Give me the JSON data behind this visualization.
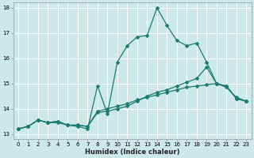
{
  "xlabel": "Humidex (Indice chaleur)",
  "bg_color": "#cce8e8",
  "grid_color": "#ffffff",
  "line_color": "#1a7a6e",
  "xlim": [
    -0.5,
    23.5
  ],
  "ylim": [
    12.8,
    18.2
  ],
  "xticks": [
    0,
    1,
    2,
    3,
    4,
    5,
    6,
    7,
    8,
    9,
    10,
    11,
    12,
    13,
    14,
    15,
    16,
    17,
    18,
    19,
    20,
    21,
    22,
    23
  ],
  "yticks": [
    13,
    14,
    15,
    16,
    17,
    18
  ],
  "line1_x": [
    0,
    1,
    2,
    3,
    4,
    5,
    6,
    7,
    8,
    9,
    10,
    11,
    12,
    13,
    14,
    15,
    16,
    17,
    18,
    19,
    20,
    21,
    22,
    23
  ],
  "line1_y": [
    13.2,
    13.3,
    13.55,
    13.45,
    13.45,
    13.35,
    13.35,
    13.3,
    13.85,
    13.9,
    14.0,
    14.1,
    14.3,
    14.5,
    14.65,
    14.75,
    14.9,
    15.05,
    15.2,
    15.65,
    15.0,
    14.9,
    14.4,
    14.3
  ],
  "line2_x": [
    0,
    1,
    2,
    3,
    4,
    5,
    6,
    7,
    8,
    9,
    10,
    11,
    12,
    13,
    14,
    15,
    16,
    17,
    18,
    19,
    20,
    21,
    22,
    23
  ],
  "line2_y": [
    13.2,
    13.3,
    13.55,
    13.45,
    13.5,
    13.35,
    13.35,
    13.3,
    13.9,
    14.0,
    14.1,
    14.2,
    14.35,
    14.45,
    14.55,
    14.65,
    14.75,
    14.85,
    14.9,
    14.95,
    15.0,
    14.85,
    14.45,
    14.3
  ],
  "line3_x": [
    0,
    1,
    2,
    3,
    4,
    5,
    6,
    7,
    8,
    9,
    10,
    11,
    12,
    13,
    14,
    15,
    16,
    17,
    18,
    19,
    20,
    21,
    22,
    23
  ],
  "line3_y": [
    13.2,
    13.3,
    13.55,
    13.45,
    13.5,
    13.35,
    13.3,
    13.2,
    14.9,
    13.8,
    15.85,
    16.5,
    16.85,
    16.9,
    18.0,
    17.3,
    16.7,
    16.5,
    16.6,
    15.85,
    15.0,
    14.9,
    14.4,
    14.3
  ],
  "marker_size": 2.5,
  "line_width": 0.9,
  "tick_fontsize": 5.0,
  "xlabel_fontsize": 6.0
}
